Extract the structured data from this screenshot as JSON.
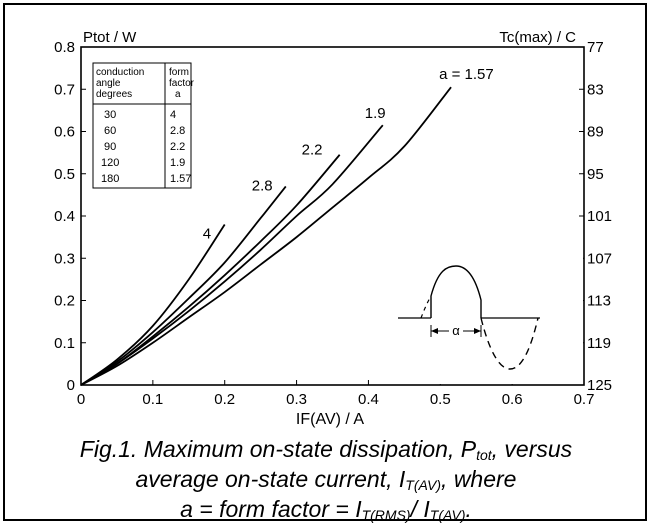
{
  "chart_data": {
    "type": "line",
    "left_axis_title": "Ptot / W",
    "right_axis_title": "Tc(max) / C",
    "xlabel": "IF(AV) / A",
    "xlim": [
      0,
      0.7
    ],
    "ylim": [
      0,
      0.8
    ],
    "x_ticks": [
      "0",
      "0.1",
      "0.2",
      "0.3",
      "0.4",
      "0.5",
      "0.6",
      "0.7"
    ],
    "y_ticks": [
      "0",
      "0.1",
      "0.2",
      "0.3",
      "0.4",
      "0.5",
      "0.6",
      "0.7",
      "0.8"
    ],
    "right_ticks": [
      "125",
      "119",
      "113",
      "107",
      "101",
      "95",
      "89",
      "83",
      "77"
    ],
    "grid": false,
    "series": [
      {
        "name": "4",
        "x": [
          0,
          0.05,
          0.1,
          0.15,
          0.2
        ],
        "y": [
          0,
          0.06,
          0.14,
          0.25,
          0.38
        ]
      },
      {
        "name": "2.8",
        "x": [
          0,
          0.05,
          0.1,
          0.15,
          0.2,
          0.25,
          0.285
        ],
        "y": [
          0,
          0.055,
          0.125,
          0.205,
          0.29,
          0.395,
          0.47
        ]
      },
      {
        "name": "2.2",
        "x": [
          0,
          0.05,
          0.1,
          0.15,
          0.2,
          0.25,
          0.3,
          0.36
        ],
        "y": [
          0,
          0.05,
          0.115,
          0.185,
          0.26,
          0.34,
          0.425,
          0.545
        ]
      },
      {
        "name": "1.9",
        "x": [
          0,
          0.05,
          0.1,
          0.15,
          0.2,
          0.25,
          0.3,
          0.35,
          0.42
        ],
        "y": [
          0,
          0.05,
          0.11,
          0.175,
          0.245,
          0.32,
          0.4,
          0.475,
          0.615
        ]
      },
      {
        "name": "a = 1.57",
        "x": [
          0,
          0.05,
          0.1,
          0.15,
          0.2,
          0.25,
          0.3,
          0.35,
          0.4,
          0.45,
          0.515
        ],
        "y": [
          0,
          0.045,
          0.1,
          0.16,
          0.22,
          0.285,
          0.35,
          0.42,
          0.49,
          0.565,
          0.705
        ]
      }
    ]
  },
  "table": {
    "headers": [
      [
        "conduction",
        "angle",
        "degrees"
      ],
      [
        "form",
        "factor",
        "a"
      ]
    ],
    "rows": [
      [
        "30",
        "4"
      ],
      [
        "60",
        "2.8"
      ],
      [
        "90",
        "2.2"
      ],
      [
        "120",
        "1.9"
      ],
      [
        "180",
        "1.57"
      ]
    ]
  },
  "inset": {
    "alpha": "α"
  },
  "caption": {
    "l1_a": "Fig.1.  Maximum on-state dissipation, P",
    "l1_sub": "tot",
    "l1_b": ", versus",
    "l2_a": "average on-state current, I",
    "l2_sub": "T(AV)",
    "l2_b": ", where",
    "l3_a": "a = form factor = I",
    "l3_sub1": "T(RMS)",
    "l3_mid": "/ I",
    "l3_sub2": "T(AV)",
    "l3_b": "."
  }
}
